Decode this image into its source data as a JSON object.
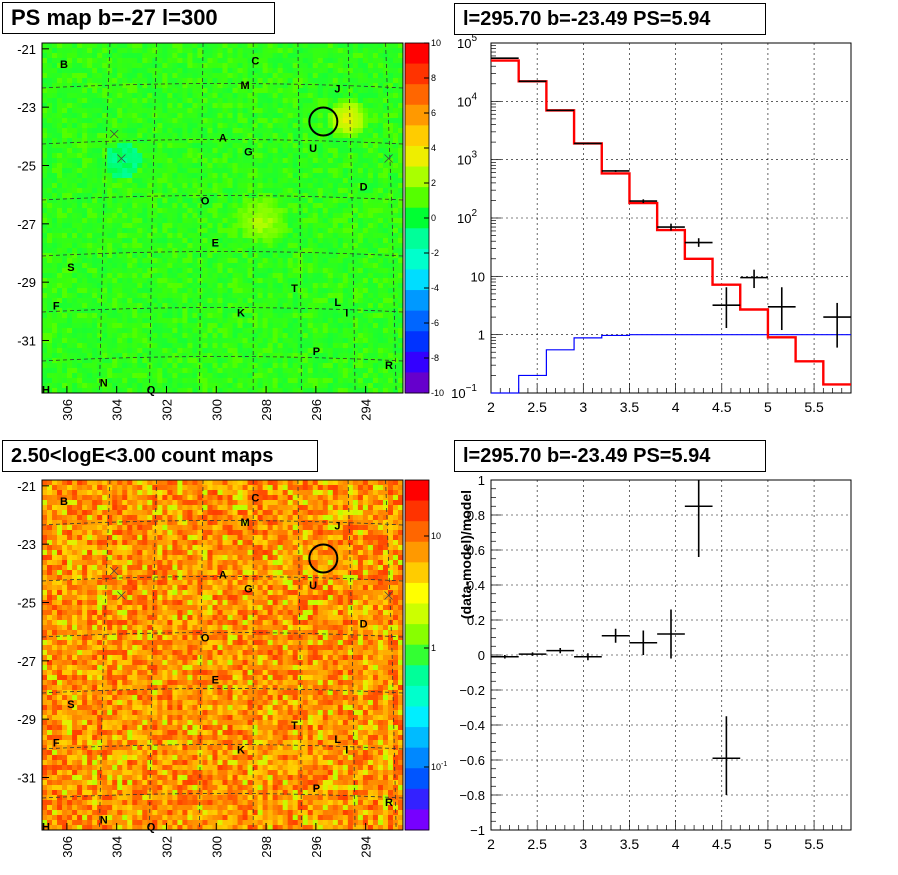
{
  "panels": {
    "ps_map": {
      "title": "PS map b=-27 l=300"
    },
    "spectrum": {
      "title": "l=295.70 b=-23.49 PS=5.94"
    },
    "count_map": {
      "title": "2.50<logE<3.00 count maps"
    },
    "residual": {
      "title": "l=295.70 b=-23.49 PS=5.94"
    }
  },
  "chart_data": [
    {
      "type": "heatmap",
      "name": "ps-map",
      "x_ticks": [
        "306",
        "304",
        "302",
        "300",
        "298",
        "296",
        "294"
      ],
      "y_ticks": [
        "-21",
        "-23",
        "-25",
        "-27",
        "-29",
        "-31"
      ],
      "colorbar_ticks": [
        "10",
        "8",
        "6",
        "4",
        "2",
        "0",
        "-2",
        "-4",
        "-6",
        "-8",
        "-10"
      ],
      "colorbar_range": [
        -10,
        10
      ],
      "labels": [
        "B",
        "C",
        "M",
        "J",
        "A",
        "G",
        "U",
        "D",
        "O",
        "E",
        "S",
        "T",
        "L",
        "I",
        "F",
        "K",
        "P",
        "R",
        "H",
        "N",
        "Q"
      ],
      "marked_source": {
        "l": 295.7,
        "b": -23.49
      }
    },
    {
      "type": "line",
      "name": "spectrum",
      "xlim": [
        2,
        5.9
      ],
      "ylim": [
        0.1,
        100000
      ],
      "log_y": true,
      "grid": true,
      "x_ticks": [
        "2",
        "2.5",
        "3",
        "3.5",
        "4",
        "4.5",
        "5",
        "5.5"
      ],
      "y_ticks": [
        {
          "base": "10",
          "exp": "5",
          "value": 100000
        },
        {
          "base": "10",
          "exp": "4",
          "value": 10000
        },
        {
          "base": "10",
          "exp": "3",
          "value": 1000
        },
        {
          "base": "10",
          "exp": "2",
          "value": 100
        },
        {
          "base": "10",
          "exp": "",
          "value": 10
        },
        {
          "base": "1",
          "exp": "",
          "value": 1
        },
        {
          "base": "10",
          "exp": "−1",
          "value": 0.1
        }
      ],
      "bin_edges": [
        2.0,
        2.3,
        2.6,
        2.9,
        3.2,
        3.5,
        3.8,
        4.1,
        4.4,
        4.7,
        5.0,
        5.3,
        5.6,
        5.9
      ],
      "series": [
        {
          "color": "#ff0000",
          "style": "step",
          "values": [
            50000,
            22000,
            7000,
            1900,
            580,
            180,
            62,
            20,
            7.2,
            2.7,
            0.9,
            0.35,
            0.14
          ]
        },
        {
          "color": "#0000ff",
          "style": "step",
          "values": [
            0.1,
            0.2,
            0.55,
            0.88,
            0.97,
            1.0,
            1.0,
            1.0,
            1.0,
            1.0,
            1.0,
            1.0,
            1.0
          ]
        },
        {
          "color": "#000000",
          "style": "errorbars",
          "points": [
            {
              "x": 2.15,
              "y": 55000,
              "ylo": 54000,
              "yhi": 56000
            },
            {
              "x": 2.45,
              "y": 22000,
              "ylo": 21700,
              "yhi": 22300
            },
            {
              "x": 2.75,
              "y": 7000,
              "ylo": 6850,
              "yhi": 7150
            },
            {
              "x": 3.05,
              "y": 1900,
              "ylo": 1850,
              "yhi": 1950
            },
            {
              "x": 3.35,
              "y": 640,
              "ylo": 615,
              "yhi": 665
            },
            {
              "x": 3.65,
              "y": 195,
              "ylo": 181,
              "yhi": 209
            },
            {
              "x": 3.95,
              "y": 70,
              "ylo": 61,
              "yhi": 80
            },
            {
              "x": 4.25,
              "y": 38,
              "ylo": 32,
              "yhi": 45
            },
            {
              "x": 4.55,
              "y": 3.2,
              "ylo": 1.3,
              "yhi": 6.5
            },
            {
              "x": 4.85,
              "y": 9.5,
              "ylo": 6.3,
              "yhi": 13
            },
            {
              "x": 5.15,
              "y": 3.0,
              "ylo": 1.2,
              "yhi": 6.5
            },
            {
              "x": 5.75,
              "y": 2.0,
              "ylo": 0.6,
              "yhi": 3.5
            }
          ]
        }
      ]
    },
    {
      "type": "heatmap",
      "name": "count-map",
      "x_ticks": [
        "306",
        "304",
        "302",
        "300",
        "298",
        "296",
        "294"
      ],
      "y_ticks": [
        "-21",
        "-23",
        "-25",
        "-27",
        "-29",
        "-31"
      ],
      "colorbar_ticks": [
        {
          "base": "10",
          "exp": ""
        },
        {
          "base": "1",
          "exp": ""
        },
        {
          "base": "10",
          "exp": "-1"
        }
      ],
      "labels": [
        "B",
        "C",
        "M",
        "J",
        "A",
        "G",
        "U",
        "D",
        "O",
        "E",
        "S",
        "T",
        "L",
        "I",
        "F",
        "K",
        "P",
        "R",
        "H",
        "N",
        "Q"
      ],
      "marked_source": {
        "l": 295.7,
        "b": -23.49
      }
    },
    {
      "type": "scatter",
      "name": "residual",
      "ylabel": "(data-model)/model",
      "xlim": [
        2,
        5.9
      ],
      "ylim": [
        -1,
        1
      ],
      "grid": true,
      "x_ticks": [
        "2",
        "2.5",
        "3",
        "3.5",
        "4",
        "4.5",
        "5",
        "5.5"
      ],
      "y_ticks": [
        "1",
        "0.8",
        "0.6",
        "0.4",
        "0.2",
        "0",
        "−0.2",
        "−0.4",
        "−0.6",
        "−0.8",
        "−1"
      ],
      "points": [
        {
          "x": 2.15,
          "y": -0.01,
          "ylo": -0.02,
          "yhi": 0.0
        },
        {
          "x": 2.45,
          "y": 0.005,
          "ylo": -0.005,
          "yhi": 0.015
        },
        {
          "x": 2.75,
          "y": 0.025,
          "ylo": 0.01,
          "yhi": 0.04
        },
        {
          "x": 3.05,
          "y": -0.01,
          "ylo": -0.03,
          "yhi": 0.01
        },
        {
          "x": 3.35,
          "y": 0.11,
          "ylo": 0.07,
          "yhi": 0.15
        },
        {
          "x": 3.65,
          "y": 0.07,
          "ylo": 0.0,
          "yhi": 0.14
        },
        {
          "x": 3.95,
          "y": 0.12,
          "ylo": -0.02,
          "yhi": 0.26
        },
        {
          "x": 4.25,
          "y": 0.85,
          "ylo": 0.56,
          "yhi": 1.0
        },
        {
          "x": 4.55,
          "y": -0.59,
          "ylo": -0.8,
          "yhi": -0.35
        }
      ]
    }
  ]
}
